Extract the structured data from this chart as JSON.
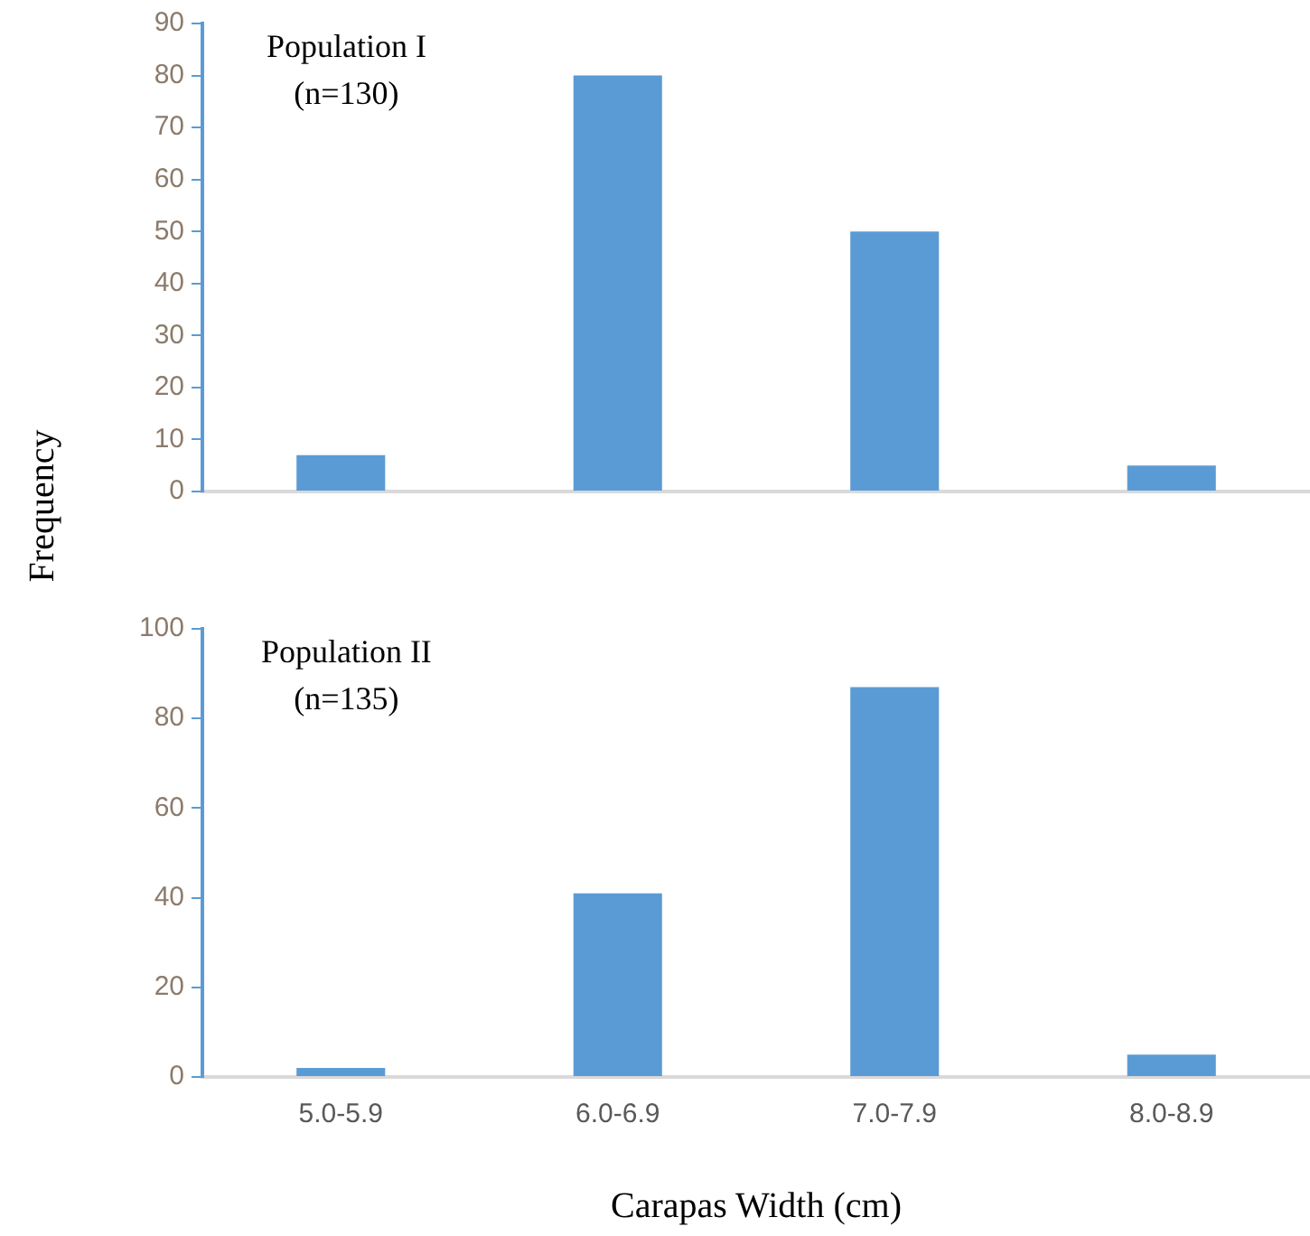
{
  "chart_data": [
    {
      "type": "bar",
      "ylabel": "Frequency",
      "categories": [
        null,
        null,
        null,
        null
      ],
      "values": [
        7,
        80,
        50,
        5
      ],
      "color": "#5b9bd5",
      "ylim": [
        0,
        90
      ],
      "yticks": [
        0,
        10,
        20,
        30,
        40,
        50,
        60,
        70,
        80,
        90
      ],
      "grid": false,
      "legend": false,
      "tick_labels": "y",
      "annotations": [
        "Population I",
        "(n=130)"
      ]
    },
    {
      "type": "bar",
      "xlabel": "Carapas Width (cm)",
      "categories": [
        "5.0-5.9",
        "6.0-6.9",
        "7.0-7.9",
        "8.0-8.9"
      ],
      "values": [
        2,
        41,
        87,
        5
      ],
      "color": "#5b9bd5",
      "ylim": [
        0,
        100
      ],
      "yticks": [
        0,
        20,
        40,
        60,
        80,
        100
      ],
      "grid": false,
      "legend": false,
      "annotations": [
        "Population II",
        "(n=135)"
      ]
    }
  ]
}
